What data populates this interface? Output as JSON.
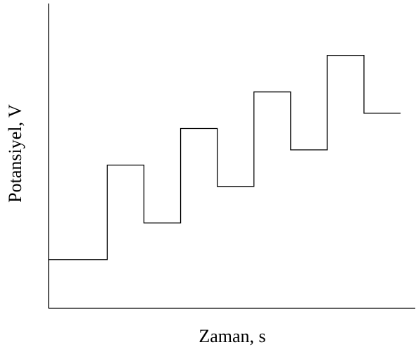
{
  "chart_data": {
    "type": "line",
    "xlabel": "Zaman, s",
    "ylabel": "Potansiyel, V",
    "xlim": [
      0,
      100
    ],
    "ylim": [
      0,
      100
    ],
    "series": [
      {
        "color": "#000000",
        "x": [
          0,
          16,
          16,
          26,
          26,
          36,
          36,
          46,
          46,
          56,
          56,
          66,
          66,
          76,
          76,
          86,
          86,
          96
        ],
        "values": [
          16,
          16,
          47,
          47,
          28,
          28,
          59,
          59,
          40,
          40,
          71,
          71,
          52,
          52,
          83,
          83,
          64,
          64
        ]
      }
    ]
  }
}
